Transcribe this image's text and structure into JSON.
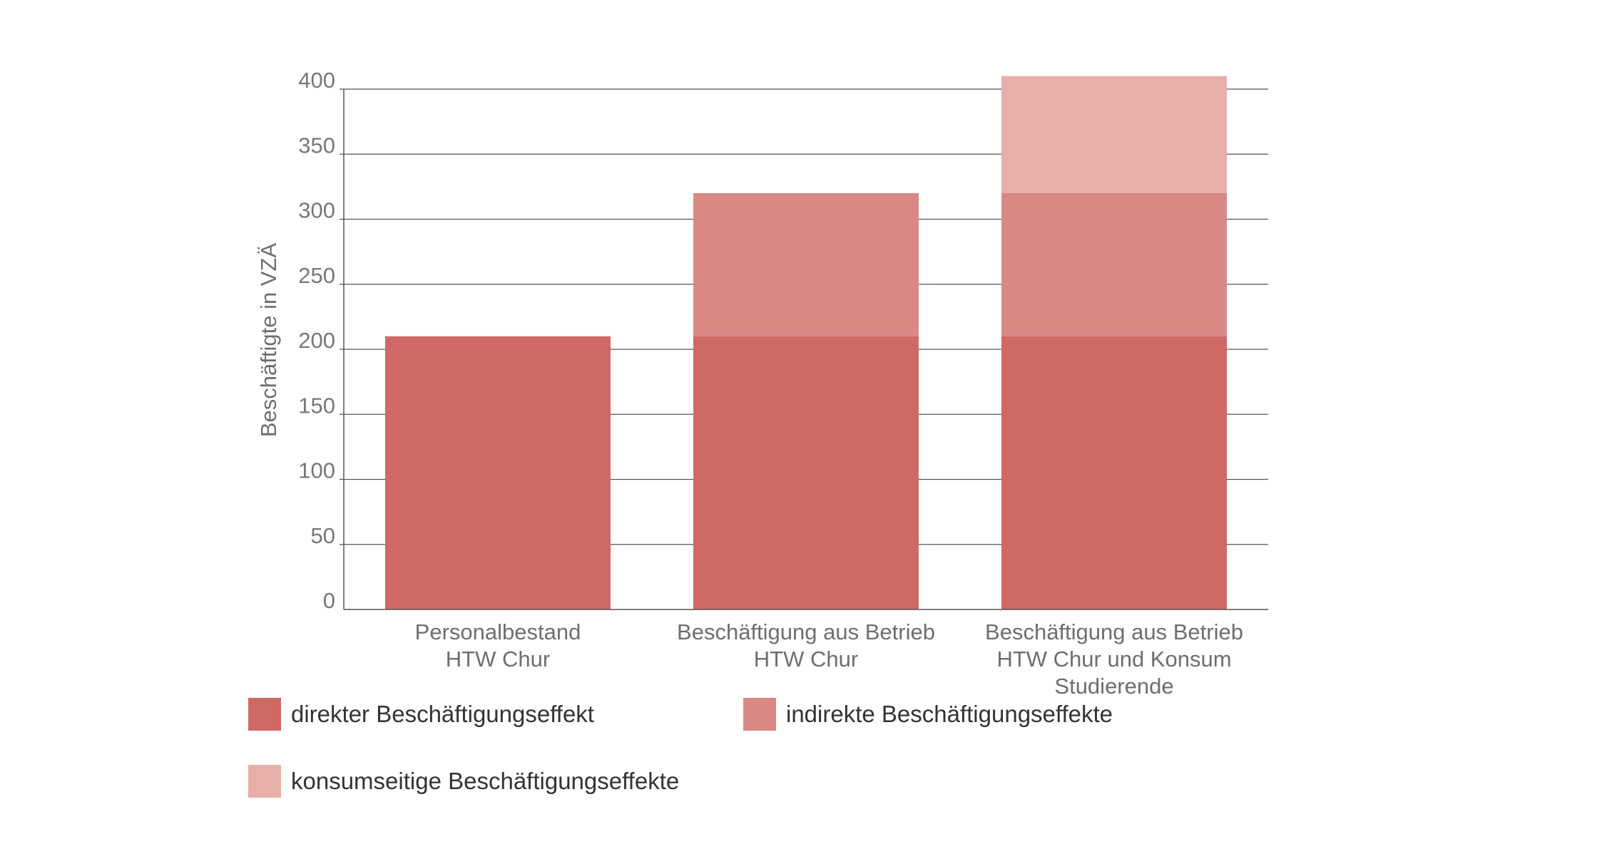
{
  "chart_data": {
    "type": "bar",
    "stacked": true,
    "categories": [
      [
        "Personalbestand",
        "HTW Chur"
      ],
      [
        "Beschäftigung aus Betrieb",
        "HTW Chur"
      ],
      [
        "Beschäftigung aus Betrieb",
        "HTW Chur und Konsum",
        "Studierende"
      ]
    ],
    "series": [
      {
        "name": "direkter Beschäftigungseffekt",
        "values": [
          210,
          210,
          210
        ],
        "color": "#cf6966"
      },
      {
        "name": "indirekte Beschäftigungseffekte",
        "values": [
          0,
          110,
          110
        ],
        "color": "#d98883"
      },
      {
        "name": "konsumseitige Beschäftigungseffekte",
        "values": [
          0,
          0,
          90
        ],
        "color": "#e7afa8"
      }
    ],
    "ylabel": "Beschäftigte in VZÄ",
    "ylim": [
      0,
      400
    ],
    "yticks": [
      0,
      50,
      100,
      150,
      200,
      250,
      300,
      350,
      400
    ],
    "grid": true,
    "legend_position": "bottom"
  }
}
